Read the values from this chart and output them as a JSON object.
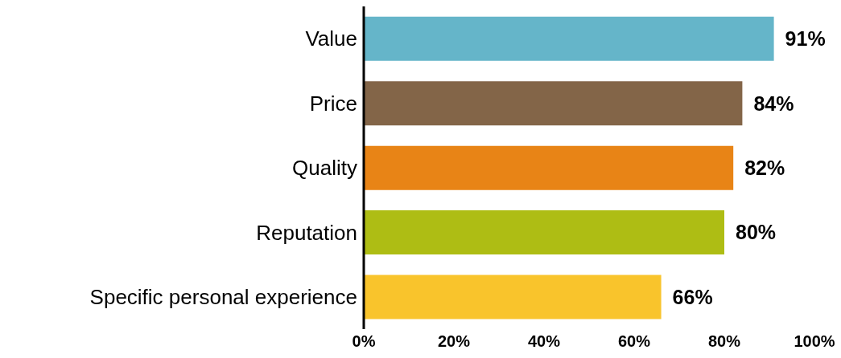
{
  "chart_data": {
    "type": "bar",
    "orientation": "horizontal",
    "categories": [
      "Value",
      "Price",
      "Quality",
      "Reputation",
      "Specific personal experience"
    ],
    "values": [
      91,
      84,
      82,
      80,
      66
    ],
    "colors": [
      "#65b5c9",
      "#836548",
      "#e88416",
      "#aebd14",
      "#f9c42c"
    ],
    "value_labels": [
      "91%",
      "84%",
      "82%",
      "80%",
      "66%"
    ],
    "xlim": [
      0,
      100
    ],
    "xticks": [
      {
        "value": 0,
        "label": "0%"
      },
      {
        "value": 20,
        "label": "20%"
      },
      {
        "value": 40,
        "label": "40%"
      },
      {
        "value": 60,
        "label": "60%"
      },
      {
        "value": 80,
        "label": "80%"
      },
      {
        "value": 100,
        "label": "100%"
      }
    ],
    "grid": false,
    "legend": false
  }
}
